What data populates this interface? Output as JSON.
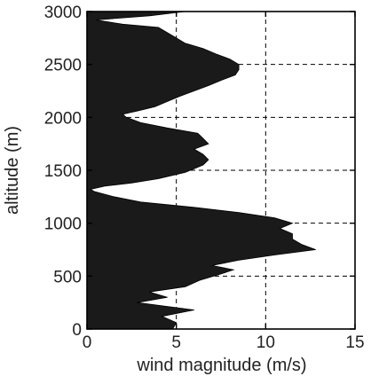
{
  "chart_data": {
    "type": "area",
    "orientation": "horizontal",
    "xlabel": "wind magnitude (m/s)",
    "ylabel": "altitude (m)",
    "xlim": [
      0,
      15
    ],
    "ylim": [
      0,
      3000
    ],
    "xticks": [
      0,
      5,
      10,
      15
    ],
    "yticks": [
      0,
      500,
      1000,
      1500,
      2000,
      2500,
      3000
    ],
    "grid": "dashed",
    "fill_color": "#1a1a1a",
    "profile": {
      "altitude": [
        0,
        60,
        120,
        180,
        250,
        300,
        350,
        400,
        460,
        520,
        560,
        600,
        650,
        700,
        750,
        800,
        850,
        900,
        950,
        1000,
        1050,
        1100,
        1150,
        1200,
        1250,
        1300,
        1320,
        1350,
        1380,
        1420,
        1480,
        1550,
        1600,
        1650,
        1700,
        1750,
        1800,
        1850,
        1900,
        1950,
        2000,
        2030,
        2060,
        2100,
        2150,
        2200,
        2250,
        2300,
        2350,
        2400,
        2450,
        2500,
        2550,
        2600,
        2650,
        2700,
        2750,
        2800,
        2850,
        2880,
        2920,
        2960,
        3000
      ],
      "wind": [
        4.8,
        5.0,
        4.2,
        6.0,
        2.8,
        4.5,
        3.5,
        5.5,
        6.3,
        7.5,
        8.2,
        7.0,
        8.5,
        10.5,
        12.8,
        12.0,
        11.5,
        11.5,
        10.8,
        11.5,
        10.5,
        8.5,
        6.0,
        3.0,
        1.5,
        0.4,
        0.2,
        1.0,
        2.5,
        4.0,
        5.5,
        6.5,
        6.8,
        6.5,
        6.0,
        6.8,
        6.5,
        6.2,
        4.5,
        3.0,
        2.2,
        2.0,
        2.8,
        3.8,
        4.5,
        5.2,
        6.0,
        6.8,
        7.5,
        8.3,
        8.5,
        8.5,
        8.0,
        7.2,
        6.5,
        5.5,
        5.0,
        4.5,
        4.0,
        2.0,
        0.5,
        3.5,
        5.5
      ]
    }
  }
}
